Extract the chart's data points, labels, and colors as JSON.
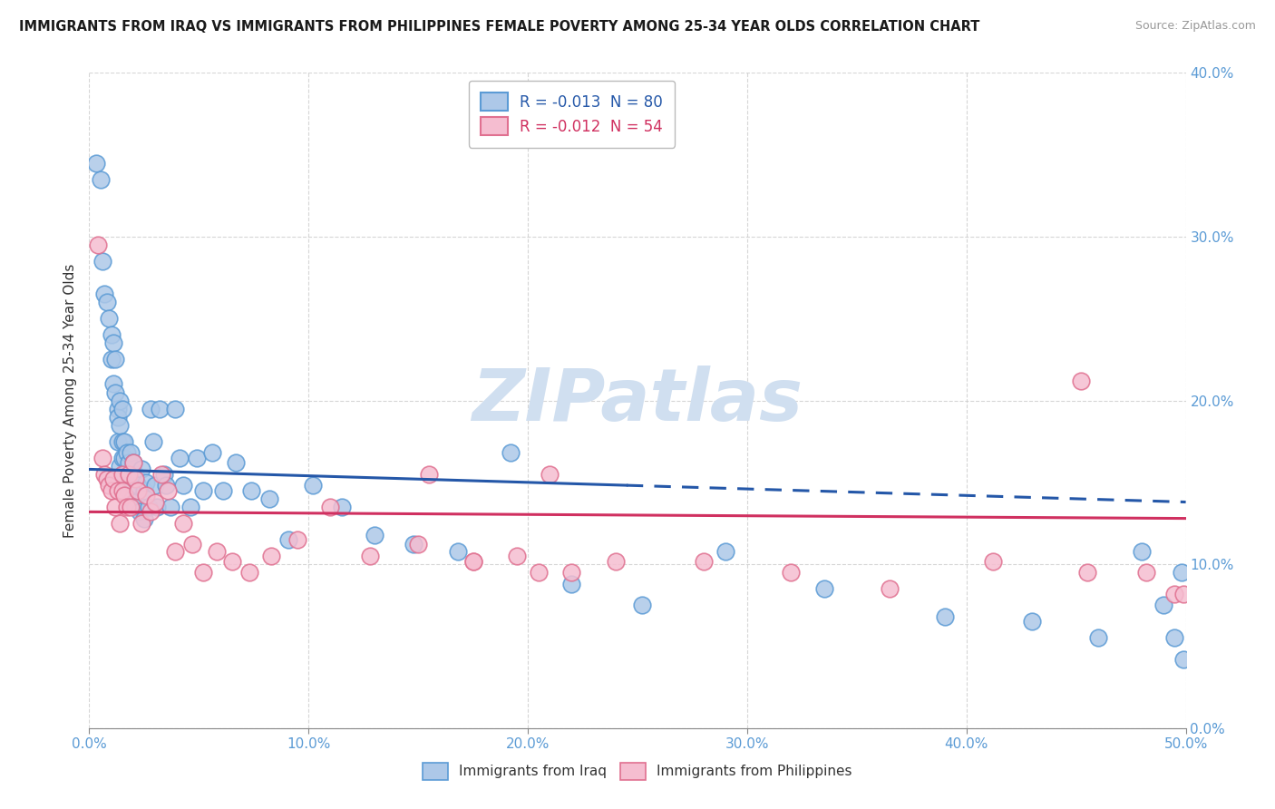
{
  "title": "IMMIGRANTS FROM IRAQ VS IMMIGRANTS FROM PHILIPPINES FEMALE POVERTY AMONG 25-34 YEAR OLDS CORRELATION CHART",
  "source": "Source: ZipAtlas.com",
  "ylabel": "Female Poverty Among 25-34 Year Olds",
  "xlim": [
    0.0,
    0.5
  ],
  "ylim": [
    0.0,
    0.4
  ],
  "xticks": [
    0.0,
    0.1,
    0.2,
    0.3,
    0.4,
    0.5
  ],
  "yticks": [
    0.0,
    0.1,
    0.2,
    0.3,
    0.4
  ],
  "xtick_labels": [
    "0.0%",
    "10.0%",
    "20.0%",
    "30.0%",
    "40.0%",
    "50.0%"
  ],
  "ytick_labels": [
    "0.0%",
    "10.0%",
    "20.0%",
    "30.0%",
    "40.0%"
  ],
  "legend_iraq_R": "-0.013",
  "legend_iraq_N": "80",
  "legend_phil_R": "-0.012",
  "legend_phil_N": "54",
  "iraq_color": "#adc8e8",
  "iraq_edge_color": "#5b9bd5",
  "phil_color": "#f5bdd0",
  "phil_edge_color": "#e07090",
  "iraq_trend_color": "#2457a8",
  "phil_trend_color": "#d03060",
  "watermark_color": "#d0dff0",
  "watermark": "ZIPatlas",
  "background_color": "#ffffff",
  "grid_color": "#cccccc",
  "iraq_x": [
    0.003,
    0.005,
    0.006,
    0.007,
    0.008,
    0.009,
    0.01,
    0.01,
    0.011,
    0.011,
    0.012,
    0.012,
    0.013,
    0.013,
    0.013,
    0.014,
    0.014,
    0.014,
    0.015,
    0.015,
    0.015,
    0.015,
    0.016,
    0.016,
    0.016,
    0.017,
    0.017,
    0.018,
    0.018,
    0.019,
    0.019,
    0.02,
    0.02,
    0.021,
    0.021,
    0.022,
    0.023,
    0.024,
    0.025,
    0.025,
    0.026,
    0.027,
    0.028,
    0.029,
    0.03,
    0.031,
    0.032,
    0.034,
    0.035,
    0.037,
    0.039,
    0.041,
    0.043,
    0.046,
    0.049,
    0.052,
    0.056,
    0.061,
    0.067,
    0.074,
    0.082,
    0.091,
    0.102,
    0.115,
    0.13,
    0.148,
    0.168,
    0.192,
    0.22,
    0.252,
    0.29,
    0.335,
    0.39,
    0.43,
    0.46,
    0.48,
    0.49,
    0.495,
    0.498,
    0.499
  ],
  "iraq_y": [
    0.345,
    0.335,
    0.285,
    0.265,
    0.26,
    0.25,
    0.24,
    0.225,
    0.235,
    0.21,
    0.225,
    0.205,
    0.195,
    0.19,
    0.175,
    0.2,
    0.185,
    0.16,
    0.195,
    0.175,
    0.165,
    0.15,
    0.175,
    0.165,
    0.155,
    0.168,
    0.148,
    0.162,
    0.145,
    0.168,
    0.148,
    0.162,
    0.138,
    0.155,
    0.135,
    0.148,
    0.132,
    0.158,
    0.145,
    0.128,
    0.15,
    0.135,
    0.195,
    0.175,
    0.148,
    0.135,
    0.195,
    0.155,
    0.148,
    0.135,
    0.195,
    0.165,
    0.148,
    0.135,
    0.165,
    0.145,
    0.168,
    0.145,
    0.162,
    0.145,
    0.14,
    0.115,
    0.148,
    0.135,
    0.118,
    0.112,
    0.108,
    0.168,
    0.088,
    0.075,
    0.108,
    0.085,
    0.068,
    0.065,
    0.055,
    0.108,
    0.075,
    0.055,
    0.095,
    0.042
  ],
  "phil_x": [
    0.004,
    0.006,
    0.007,
    0.008,
    0.009,
    0.01,
    0.011,
    0.012,
    0.013,
    0.014,
    0.015,
    0.015,
    0.016,
    0.017,
    0.018,
    0.019,
    0.02,
    0.021,
    0.022,
    0.024,
    0.026,
    0.028,
    0.03,
    0.033,
    0.036,
    0.039,
    0.043,
    0.047,
    0.052,
    0.058,
    0.065,
    0.073,
    0.083,
    0.095,
    0.11,
    0.128,
    0.15,
    0.175,
    0.205,
    0.24,
    0.28,
    0.32,
    0.365,
    0.412,
    0.452,
    0.482,
    0.495,
    0.499,
    0.22,
    0.155,
    0.175,
    0.195,
    0.455,
    0.21
  ],
  "phil_y": [
    0.295,
    0.165,
    0.155,
    0.152,
    0.148,
    0.145,
    0.152,
    0.135,
    0.145,
    0.125,
    0.155,
    0.145,
    0.142,
    0.135,
    0.155,
    0.135,
    0.162,
    0.152,
    0.145,
    0.125,
    0.142,
    0.132,
    0.138,
    0.155,
    0.145,
    0.108,
    0.125,
    0.112,
    0.095,
    0.108,
    0.102,
    0.095,
    0.105,
    0.115,
    0.135,
    0.105,
    0.112,
    0.102,
    0.095,
    0.102,
    0.102,
    0.095,
    0.085,
    0.102,
    0.212,
    0.095,
    0.082,
    0.082,
    0.095,
    0.155,
    0.102,
    0.105,
    0.095,
    0.155
  ],
  "iraq_trend_y_start": 0.158,
  "iraq_trend_y_mid": 0.148,
  "iraq_trend_y_end": 0.138,
  "phil_trend_y_start": 0.132,
  "phil_trend_y_end": 0.128
}
